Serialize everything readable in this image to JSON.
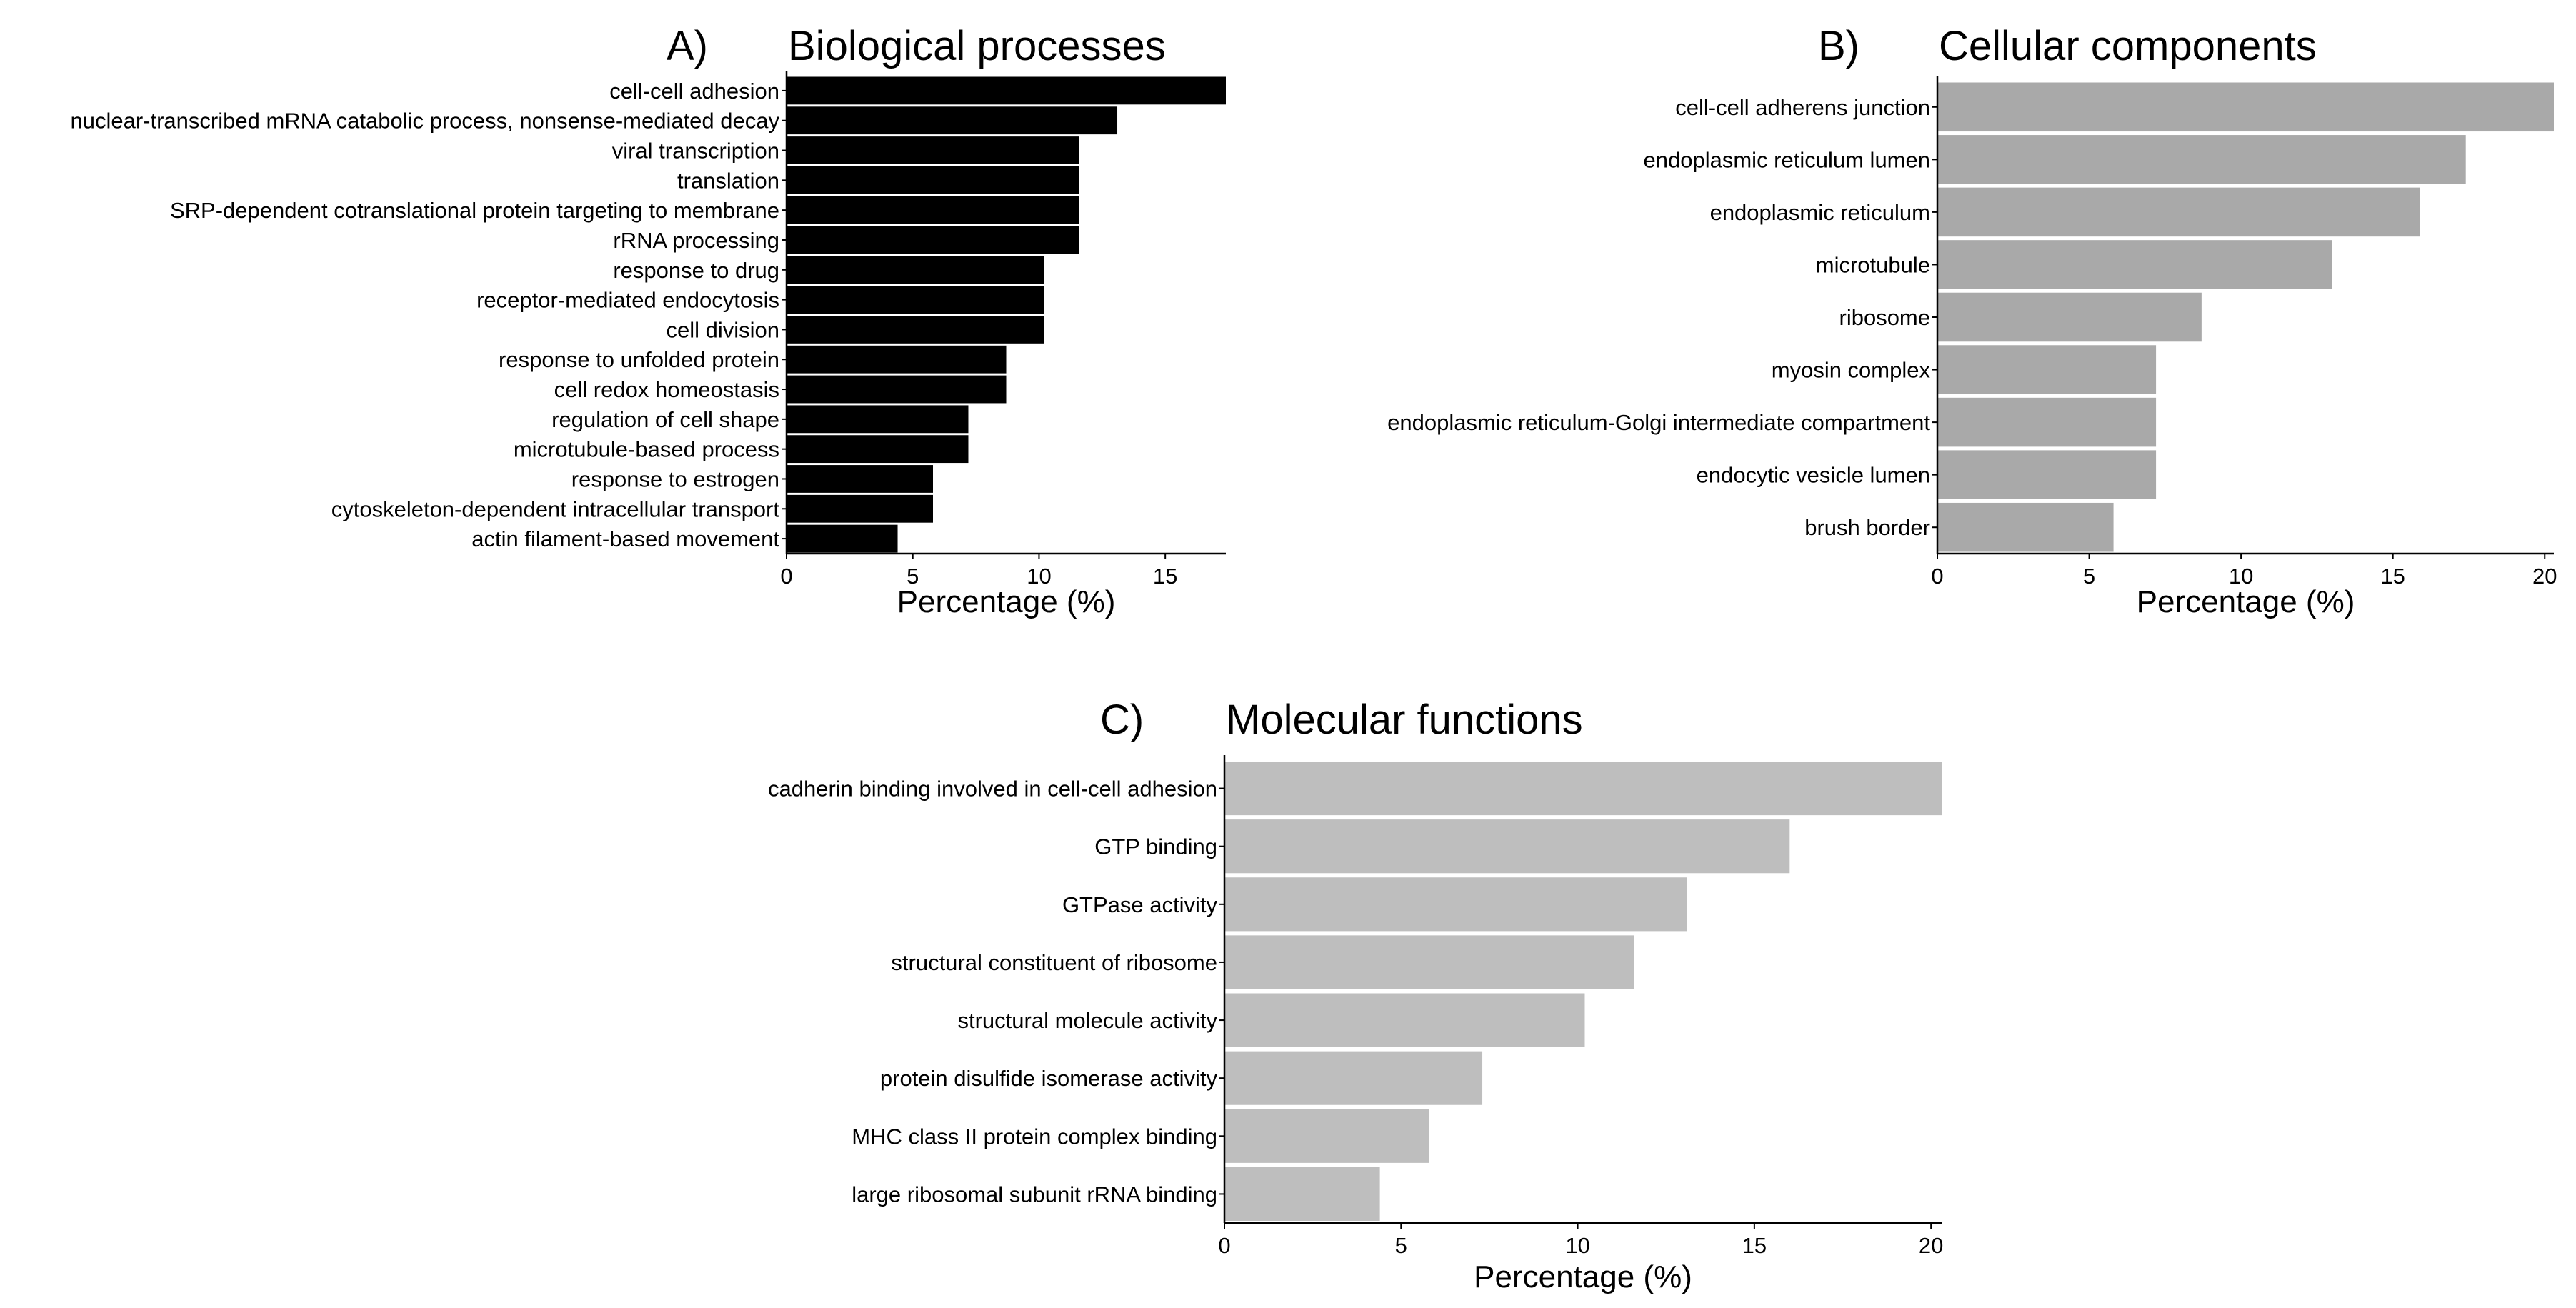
{
  "chart_data": [
    {
      "id": "A",
      "type": "bar",
      "orientation": "horizontal",
      "panel_letter": "A)",
      "title": "Biological processes",
      "xlabel": "Percentage (%)",
      "ylabel": "",
      "xlim": [
        0,
        17.4
      ],
      "xticks": [
        0,
        5,
        10,
        15
      ],
      "bar_color": "#000000",
      "categories": [
        "cell-cell adhesion",
        "nuclear-transcribed mRNA catabolic process, nonsense-mediated decay",
        "viral transcription",
        "translation",
        "SRP-dependent cotranslational protein targeting to membrane",
        "rRNA processing",
        "response to drug",
        "receptor-mediated endocytosis",
        "cell division",
        "response to unfolded protein",
        "cell redox homeostasis",
        "regulation of cell shape",
        "microtubule-based process",
        "response to estrogen",
        "cytoskeleton-dependent intracellular transport",
        "actin filament-based movement"
      ],
      "values": [
        17.4,
        13.1,
        11.6,
        11.6,
        11.6,
        11.6,
        10.2,
        10.2,
        10.2,
        8.7,
        8.7,
        7.2,
        7.2,
        5.8,
        5.8,
        4.4
      ]
    },
    {
      "id": "B",
      "type": "bar",
      "orientation": "horizontal",
      "panel_letter": "B)",
      "title": "Cellular components",
      "xlabel": "Percentage (%)",
      "ylabel": "",
      "xlim": [
        0,
        20.3
      ],
      "xticks": [
        0,
        5,
        10,
        15,
        20
      ],
      "bar_color": "#a9a9a9",
      "categories": [
        "cell-cell adherens junction",
        "endoplasmic reticulum lumen",
        "endoplasmic reticulum",
        "microtubule",
        "ribosome",
        "myosin complex",
        "endoplasmic reticulum-Golgi intermediate compartment",
        "endocytic vesicle lumen",
        "brush border"
      ],
      "values": [
        20.3,
        17.4,
        15.9,
        13.0,
        8.7,
        7.2,
        7.2,
        7.2,
        5.8
      ]
    },
    {
      "id": "C",
      "type": "bar",
      "orientation": "horizontal",
      "panel_letter": "C)",
      "title": "Molecular functions",
      "xlabel": "Percentage (%)",
      "ylabel": "",
      "xlim": [
        0,
        20.3
      ],
      "xticks": [
        0,
        5,
        10,
        15,
        20
      ],
      "bar_color": "#bebebe",
      "categories": [
        "cadherin binding involved in cell-cell adhesion",
        "GTP binding",
        "GTPase activity",
        "structural constituent of ribosome",
        "structural molecule activity",
        "protein disulfide isomerase activity",
        "MHC class II protein complex binding",
        "large ribosomal subunit rRNA binding"
      ],
      "values": [
        20.3,
        16.0,
        13.1,
        11.6,
        10.2,
        7.3,
        5.8,
        4.4
      ]
    }
  ]
}
